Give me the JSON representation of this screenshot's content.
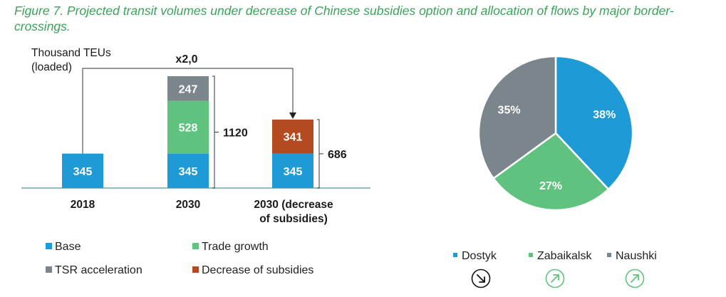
{
  "figure_title": "Figure 7. Projected transit volumes under decrease of Chinese subsidies option and allocation of flows by major border-crossings.",
  "colors": {
    "base": "#1e9ad6",
    "trade_growth": "#5fc27e",
    "tsr_acceleration": "#7b868c",
    "decrease_subsidies": "#b5491f",
    "dostyk": "#1e9ad6",
    "zabaikalsk": "#5fc27e",
    "naushki": "#7b868c",
    "title": "#3aa35a"
  },
  "chart_data": [
    {
      "type": "bar",
      "stacked": true,
      "ylabel_line1": "Thousand TEUs",
      "ylabel_line2": "(loaded)",
      "categories": [
        "2018",
        "2030",
        "2030 (decrease of subsidies)"
      ],
      "category_lines": [
        [
          "2018"
        ],
        [
          "2030"
        ],
        [
          "2030 (decrease",
          "of subsidies)"
        ]
      ],
      "series": [
        {
          "name": "Base",
          "values": [
            345,
            345,
            345
          ]
        },
        {
          "name": "Trade growth",
          "values": [
            0,
            528,
            0
          ]
        },
        {
          "name": "TSR acceleration",
          "values": [
            0,
            247,
            0
          ]
        },
        {
          "name": "Decrease of subsidies",
          "values": [
            0,
            0,
            341
          ]
        }
      ],
      "totals": [
        "",
        "1120",
        "686"
      ],
      "annotation": "x2,0",
      "legend_placement": "bottom",
      "grid": false
    },
    {
      "type": "pie",
      "slices": [
        {
          "name": "Dostyk",
          "value": 38,
          "label": "38%",
          "trend": "down"
        },
        {
          "name": "Zabaikalsk",
          "value": 27,
          "label": "27%",
          "trend": "up"
        },
        {
          "name": "Naushki",
          "value": 35,
          "label": "35%",
          "trend": "up"
        }
      ],
      "legend_placement": "bottom"
    }
  ]
}
